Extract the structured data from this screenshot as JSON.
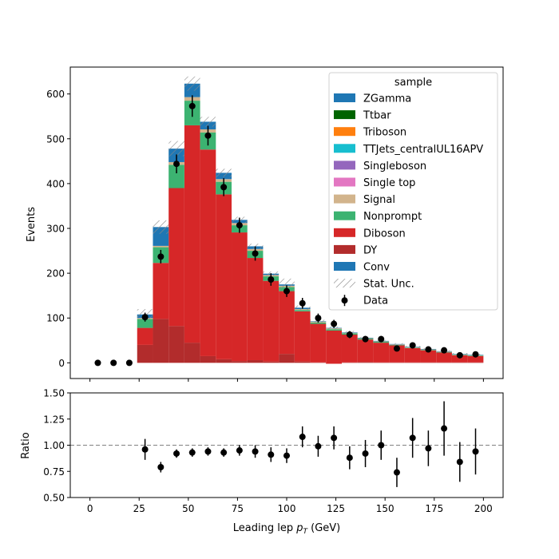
{
  "chart_data": [
    {
      "type": "bar",
      "stacked": true,
      "ylabel": "Events",
      "xlim": [
        -10,
        210
      ],
      "ylim": [
        -35,
        660
      ],
      "yticks": [
        0,
        100,
        200,
        300,
        400,
        500,
        600
      ],
      "bin_edges": [
        0,
        8,
        16,
        24,
        32,
        40,
        48,
        56,
        64,
        72,
        80,
        88,
        96,
        104,
        112,
        120,
        128,
        136,
        144,
        152,
        160,
        168,
        176,
        184,
        192,
        200
      ],
      "legend": {
        "title": "sample",
        "placement": "upper right",
        "entries": [
          "ZGamma",
          "Ttbar",
          "Triboson",
          "TTJets_centralUL16APV",
          "Singleboson",
          "Single top",
          "Signal",
          "Nonprompt",
          "Diboson",
          "DY",
          "Conv",
          "Stat. Unc.",
          "Data"
        ]
      },
      "series": [
        {
          "name": "DY",
          "color": "#b22c2c",
          "values": [
            0,
            0,
            0,
            40,
            98,
            82,
            45,
            15,
            8,
            4,
            6,
            3,
            20,
            3,
            1,
            -2,
            1,
            2,
            1,
            1,
            1,
            1,
            1,
            1,
            1
          ]
        },
        {
          "name": "Diboson",
          "color": "#d62728",
          "values": [
            0,
            0,
            0,
            38,
            125,
            308,
            485,
            461,
            368,
            287,
            228,
            180,
            140,
            112,
            86,
            74,
            62,
            50,
            44,
            38,
            32,
            27,
            22,
            16,
            14
          ]
        },
        {
          "name": "Nonprompt",
          "color": "#3cb371",
          "values": [
            0,
            0,
            0,
            20,
            35,
            52,
            55,
            38,
            28,
            16,
            16,
            10,
            9,
            3,
            3,
            3,
            3,
            2,
            2,
            1,
            1,
            1,
            1,
            1,
            1
          ]
        },
        {
          "name": "Signal",
          "color": "#d2b48c",
          "values": [
            0,
            0,
            0,
            2,
            3,
            6,
            8,
            7,
            6,
            5,
            4,
            3,
            3,
            2,
            2,
            2,
            1,
            1,
            1,
            1,
            1,
            1,
            1,
            1,
            1
          ]
        },
        {
          "name": "Conv",
          "color": "#1f77b4",
          "values": [
            0,
            0,
            0,
            8,
            42,
            30,
            30,
            17,
            14,
            7,
            6,
            3,
            3,
            3,
            1,
            1,
            1,
            1,
            1,
            1,
            1,
            1,
            1,
            1,
            1
          ]
        }
      ],
      "stat_unc": [
        0,
        0,
        0,
        12,
        15,
        17,
        16,
        11,
        9,
        7,
        6,
        5,
        13,
        5,
        3,
        3,
        3,
        2,
        2,
        2,
        2,
        2,
        2,
        2,
        2
      ],
      "data": {
        "name": "Data",
        "x": [
          4,
          12,
          20,
          28,
          36,
          44,
          52,
          60,
          68,
          76,
          84,
          92,
          100,
          108,
          116,
          124,
          132,
          140,
          148,
          156,
          164,
          172,
          180,
          188,
          196
        ],
        "y": [
          0,
          0,
          0,
          102,
          237,
          444,
          573,
          507,
          392,
          307,
          244,
          186,
          160,
          133,
          100,
          87,
          63,
          53,
          53,
          32,
          39,
          30,
          28,
          17,
          19
        ],
        "yerr": [
          0,
          0,
          0,
          10,
          15,
          21,
          24,
          22,
          20,
          17,
          16,
          14,
          13,
          12,
          10,
          9,
          8,
          7,
          7,
          6,
          6,
          5,
          5,
          4,
          4
        ]
      }
    },
    {
      "type": "scatter",
      "xlabel": "Leading lep p_T (GeV)",
      "ylabel": "Ratio",
      "xlim": [
        -10,
        210
      ],
      "ylim": [
        0.5,
        1.5
      ],
      "xticks": [
        0,
        25,
        50,
        75,
        100,
        125,
        150,
        175,
        200
      ],
      "yticks": [
        0.5,
        0.75,
        1.0,
        1.25,
        1.5
      ],
      "reference_line": 1.0,
      "x": [
        28,
        36,
        44,
        52,
        60,
        68,
        76,
        84,
        92,
        100,
        108,
        116,
        124,
        132,
        140,
        148,
        156,
        164,
        172,
        180,
        188,
        196
      ],
      "y": [
        0.96,
        0.79,
        0.92,
        0.93,
        0.94,
        0.93,
        0.95,
        0.94,
        0.91,
        0.9,
        1.08,
        0.99,
        1.07,
        0.88,
        0.92,
        1.0,
        0.74,
        1.07,
        0.97,
        1.16,
        0.84,
        0.94
      ],
      "yerr": [
        0.1,
        0.05,
        0.04,
        0.04,
        0.04,
        0.04,
        0.05,
        0.06,
        0.07,
        0.07,
        0.1,
        0.1,
        0.11,
        0.11,
        0.13,
        0.14,
        0.14,
        0.19,
        0.17,
        0.26,
        0.19,
        0.22
      ]
    }
  ]
}
